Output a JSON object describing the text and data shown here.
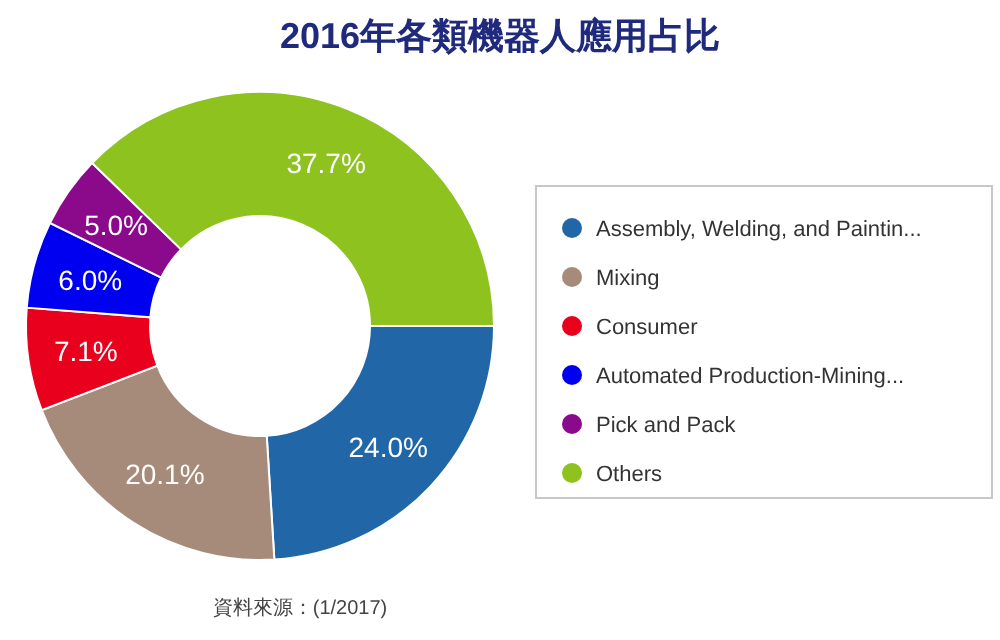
{
  "chart_data": {
    "type": "donut",
    "title": "2016年各類機器人應用占比",
    "categories": [
      "Assembly, Welding, and Paintin...",
      "Mixing",
      "Consumer",
      "Automated Production-Mining...",
      "Pick and Pack",
      "Others"
    ],
    "values": [
      24.0,
      20.1,
      7.1,
      6.0,
      5.0,
      37.7
    ],
    "colors": [
      "#2167a8",
      "#a68b7a",
      "#e8001c",
      "#0000f0",
      "#8b0a8b",
      "#8dc21f"
    ],
    "value_labels": [
      "24.0%",
      "20.1%",
      "7.1%",
      "6.0%",
      "5.0%",
      "37.7%"
    ],
    "legend": "right",
    "annotations": [
      "資料來源：(1/2017)"
    ]
  }
}
